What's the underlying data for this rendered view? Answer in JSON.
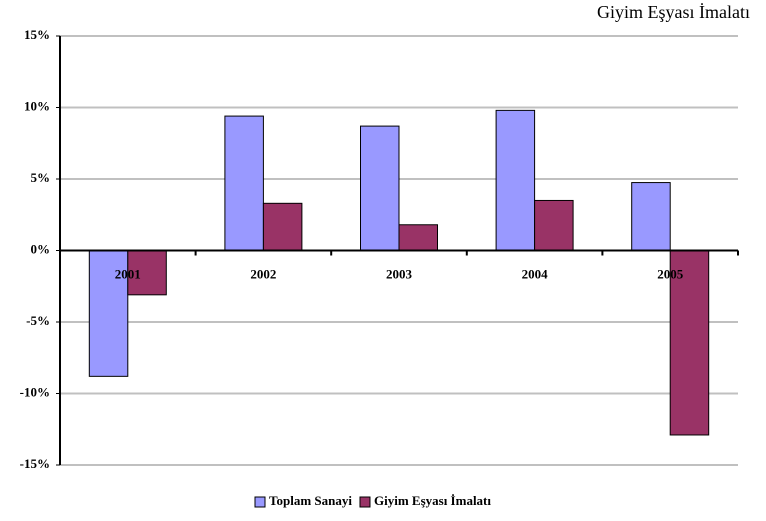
{
  "chart_data": {
    "type": "bar",
    "title": "Giyim Eşyası İmalatı",
    "categories": [
      "2001",
      "2002",
      "2003",
      "2004",
      "2005"
    ],
    "series": [
      {
        "name": "Toplam Sanayi",
        "color": "#9999ff",
        "values": [
          -8.8,
          9.4,
          8.7,
          9.8,
          4.75
        ]
      },
      {
        "name": "Giyim Eşyası İmalatı",
        "color": "#993366",
        "values": [
          -3.1,
          3.3,
          1.8,
          3.5,
          -12.9
        ]
      }
    ],
    "ylim": [
      -15,
      15
    ],
    "yticks": [
      {
        "value": -15,
        "label": "-15%"
      },
      {
        "value": -10,
        "label": "-10%"
      },
      {
        "value": -5,
        "label": "-5%"
      },
      {
        "value": 0,
        "label": "0%"
      },
      {
        "value": 5,
        "label": "5%"
      },
      {
        "value": 10,
        "label": "10%"
      },
      {
        "value": 15,
        "label": "15%"
      }
    ],
    "grid": true,
    "legend": "bottom"
  }
}
